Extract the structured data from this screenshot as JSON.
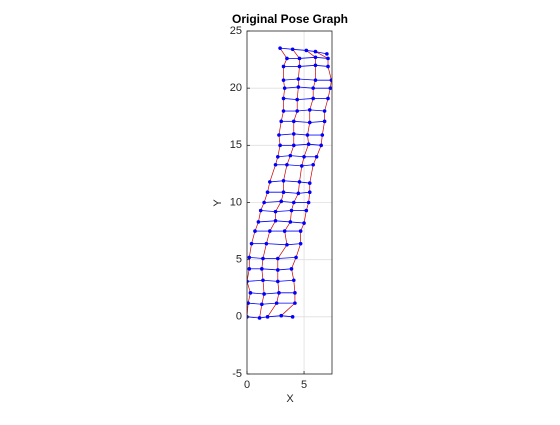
{
  "chart_data": {
    "type": "network",
    "title": "Original Pose Graph",
    "xlabel": "X",
    "ylabel": "Y",
    "xlim": [
      0,
      7.45
    ],
    "ylim": [
      -5,
      25
    ],
    "xticks": [
      0,
      5
    ],
    "yticks": [
      -5,
      0,
      5,
      10,
      15,
      20,
      25
    ],
    "grid": true,
    "node_color": "#0000ff",
    "edge_color": "#0000ff",
    "loop_color": "#cc0000",
    "rows": [
      {
        "x": [
          0,
          1.1,
          1.8,
          3.0,
          4.0
        ],
        "y": [
          0,
          -0.1,
          0,
          0.1,
          0
        ]
      },
      {
        "x": [
          0.1,
          1.3,
          2.6,
          4.2
        ],
        "y": [
          1.2,
          1.1,
          1.2,
          1.2
        ]
      },
      {
        "x": [
          0.3,
          1.5,
          2.8,
          4.2
        ],
        "y": [
          2.1,
          2.0,
          2.1,
          2.1
        ]
      },
      {
        "x": [
          0,
          1.4,
          2.7,
          4.1
        ],
        "y": [
          3.1,
          3.2,
          3.1,
          3.2
        ]
      },
      {
        "x": [
          0.2,
          1.3,
          2.7,
          3.9
        ],
        "y": [
          4.2,
          4.2,
          4.1,
          4.2
        ]
      },
      {
        "x": [
          0.2,
          1.4,
          2.7,
          4.3
        ],
        "y": [
          5.2,
          5.1,
          5.1,
          5.2
        ]
      },
      {
        "x": [
          0.4,
          1.7,
          3.5,
          4.7
        ],
        "y": [
          6.4,
          6.4,
          6.3,
          6.4
        ]
      },
      {
        "x": [
          0.7,
          2.0,
          3.3,
          4.7
        ],
        "y": [
          7.5,
          7.5,
          7.5,
          7.5
        ]
      },
      {
        "x": [
          1.0,
          2.5,
          3.8,
          5.0
        ],
        "y": [
          8.3,
          8.4,
          8.3,
          8.2
        ]
      },
      {
        "x": [
          1.2,
          2.5,
          3.9,
          5.2
        ],
        "y": [
          9.3,
          9.2,
          9.3,
          9.3
        ]
      },
      {
        "x": [
          1.5,
          3.0,
          4.1,
          5.4
        ],
        "y": [
          10.0,
          10.1,
          10.0,
          10.0
        ]
      },
      {
        "x": [
          1.8,
          3.2,
          4.5,
          5.5
        ],
        "y": [
          10.9,
          10.9,
          10.8,
          10.9
        ]
      },
      {
        "x": [
          2.0,
          3.2,
          4.6,
          5.5
        ],
        "y": [
          11.8,
          11.9,
          11.8,
          11.7
        ]
      },
      {
        "x": [
          2.5,
          3.5,
          4.8,
          5.8
        ],
        "y": [
          13.3,
          13.3,
          13.2,
          13.3
        ]
      },
      {
        "x": [
          2.7,
          3.8,
          5.0,
          6.1
        ],
        "y": [
          14.0,
          14.1,
          14.0,
          14.0
        ]
      },
      {
        "x": [
          2.9,
          4.1,
          5.4,
          6.5
        ],
        "y": [
          15.0,
          15.0,
          15.1,
          15.0
        ]
      },
      {
        "x": [
          2.8,
          4.1,
          5.3,
          6.6
        ],
        "y": [
          15.9,
          16.0,
          15.9,
          15.9
        ]
      },
      {
        "x": [
          3.0,
          4.1,
          5.5,
          6.8
        ],
        "y": [
          17.1,
          17.1,
          17.0,
          17.1
        ]
      },
      {
        "x": [
          3.2,
          4.4,
          5.5,
          6.8
        ],
        "y": [
          18.0,
          18.0,
          18.1,
          18.0
        ]
      },
      {
        "x": [
          3.2,
          4.4,
          5.8,
          7.1
        ],
        "y": [
          19.1,
          19.0,
          19.1,
          19.1
        ]
      },
      {
        "x": [
          3.3,
          4.5,
          5.8,
          7.3
        ],
        "y": [
          20.0,
          20.1,
          20.0,
          20.0
        ]
      },
      {
        "x": [
          3.2,
          4.5,
          6.0,
          7.4
        ],
        "y": [
          20.7,
          20.8,
          20.7,
          20.7
        ]
      },
      {
        "x": [
          3.2,
          4.6,
          6.0,
          7.1
        ],
        "y": [
          21.9,
          21.9,
          22.0,
          21.9
        ]
      },
      {
        "x": [
          3.5,
          4.6,
          6.0,
          7.1
        ],
        "y": [
          22.6,
          22.6,
          22.7,
          22.6
        ]
      },
      {
        "x": [
          2.9,
          4.0,
          5.2,
          6.0,
          7.0
        ],
        "y": [
          23.5,
          23.4,
          23.3,
          23.2,
          23.0
        ]
      }
    ]
  }
}
